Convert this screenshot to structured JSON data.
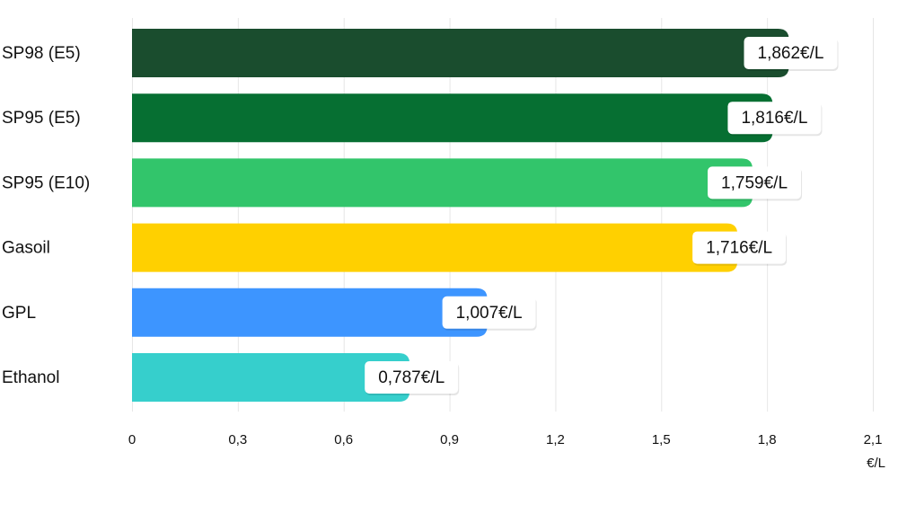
{
  "chart_data": {
    "type": "bar",
    "orientation": "horizontal",
    "categories": [
      "SP98 (E5)",
      "SP95 (E5)",
      "SP95 (E10)",
      "Gasoil",
      "GPL",
      "Ethanol"
    ],
    "values": [
      1.862,
      1.816,
      1.759,
      1.716,
      1.007,
      0.787
    ],
    "data_labels": [
      "1,862€/L",
      "1,816€/L",
      "1,759€/L",
      "1,716€/L",
      "1,007€/L",
      "0,787€/L"
    ],
    "colors": [
      "#1a4d2e",
      "#066f32",
      "#32c56b",
      "#ffd000",
      "#3d95ff",
      "#36cfcc"
    ],
    "xlim": [
      0,
      2.1
    ],
    "x_ticks": [
      0,
      0.3,
      0.6,
      0.9,
      1.2,
      1.5,
      1.8,
      2.1
    ],
    "x_tick_labels": [
      "0",
      "0,3",
      "0,6",
      "0,9",
      "1,2",
      "1,5",
      "1,8",
      "2,1"
    ],
    "xlabel": "€/L",
    "grid": "vertical",
    "legend": "none"
  }
}
